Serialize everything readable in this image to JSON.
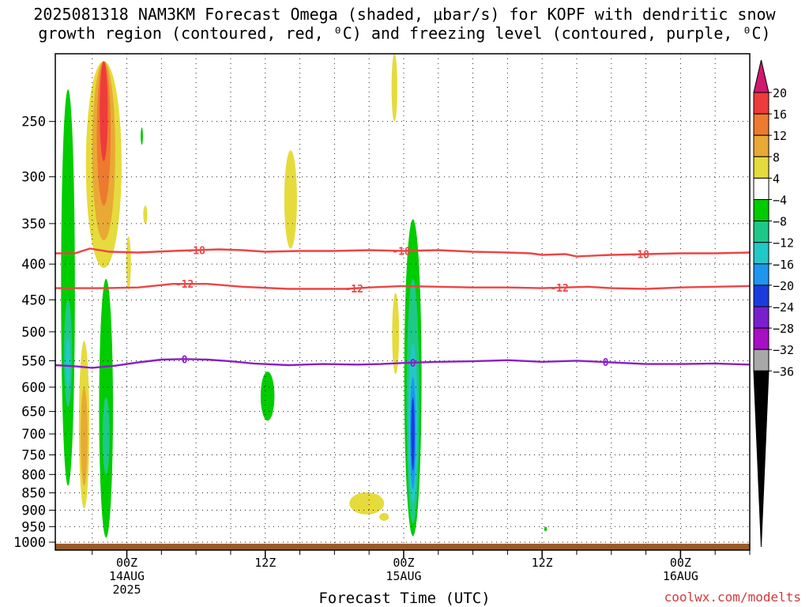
{
  "title": {
    "line1": "2025081318 NAM3KM Forecast Omega (shaded, μbar/s) for KOPF with dendritic snow",
    "line2": "growth region (contoured, red, ⁰C) and freezing level (contoured, purple, ⁰C)"
  },
  "credit": "coolwx.com/modelts",
  "chart_data": {
    "type": "heatmap",
    "xlabel": "Forecast Time (UTC)",
    "ylabel": "",
    "y_scale": "log-pressure (hPa), inverted",
    "x_range_hours": [
      -6.2,
      54.0
    ],
    "y_range_hpa": [
      200,
      1000
    ],
    "grid": "dotted",
    "x_ticks": [
      {
        "hour": 0,
        "label": "00Z",
        "sub1": "14AUG",
        "sub2": "2025"
      },
      {
        "hour": 12,
        "label": "12Z",
        "sub1": "",
        "sub2": ""
      },
      {
        "hour": 24,
        "label": "00Z",
        "sub1": "15AUG",
        "sub2": ""
      },
      {
        "hour": 36,
        "label": "12Z",
        "sub1": "",
        "sub2": ""
      },
      {
        "hour": 48,
        "label": "00Z",
        "sub1": "16AUG",
        "sub2": ""
      }
    ],
    "y_ticks": [
      250,
      300,
      350,
      400,
      450,
      500,
      550,
      600,
      650,
      700,
      750,
      800,
      850,
      900,
      950,
      1000
    ],
    "colorbar": {
      "unit": "μbar/s",
      "labels": [
        "20",
        "16",
        "12",
        "8",
        "4",
        "−4",
        "−8",
        "−12",
        "−16",
        "−20",
        "−24",
        "−28",
        "−32",
        "−36"
      ],
      "colors": {
        "top_arrow": "#d0186e",
        "16_20": "#ee3b3b",
        "12_16": "#ee7a30",
        "8_12": "#e8a935",
        "4_8": "#e6db3c",
        "-4_4": "#ffffff",
        "-8_-4": "#00cc00",
        "-12_-8": "#1fc888",
        "-16_-12": "#22c8c8",
        "-20_-16": "#1e96ef",
        "-24_-20": "#1a3cde",
        "-28_-24": "#7a1fcf",
        "-32_-28": "#a80ec4",
        "-36_-32": "#a8a8a8",
        "bottom_arrow": "#000000"
      }
    },
    "contours": [
      {
        "name": "-18",
        "color": "#ee4444",
        "points": [
          [
            -6.2,
            386
          ],
          [
            -4.5,
            386
          ],
          [
            -3.2,
            380
          ],
          [
            -1.5,
            384
          ],
          [
            1,
            385
          ],
          [
            4,
            383
          ],
          [
            6,
            382
          ],
          [
            8,
            381
          ],
          [
            10,
            382
          ],
          [
            12,
            384
          ],
          [
            15,
            383
          ],
          [
            18,
            383
          ],
          [
            21,
            382
          ],
          [
            24,
            383
          ],
          [
            27,
            382
          ],
          [
            30,
            384
          ],
          [
            33,
            385
          ],
          [
            35,
            386
          ],
          [
            36,
            388
          ],
          [
            38,
            387
          ],
          [
            39,
            390
          ],
          [
            42,
            388
          ],
          [
            45,
            387
          ],
          [
            48,
            386
          ],
          [
            51,
            386
          ],
          [
            54,
            385
          ]
        ],
        "labels": [
          {
            "hour": 6,
            "text": "-18"
          },
          [
            23.8,
            "-18"
          ],
          [
            44.5,
            "-18"
          ]
        ]
      },
      {
        "name": "-12",
        "color": "#ee4444",
        "points": [
          [
            -6.2,
            433
          ],
          [
            -2,
            433
          ],
          [
            1,
            432
          ],
          [
            4,
            427
          ],
          [
            7,
            427
          ],
          [
            10,
            431
          ],
          [
            14,
            434
          ],
          [
            17,
            434
          ],
          [
            19,
            434
          ],
          [
            21,
            432
          ],
          [
            24,
            430
          ],
          [
            27,
            431
          ],
          [
            30,
            432
          ],
          [
            33,
            432
          ],
          [
            36,
            433
          ],
          [
            38,
            432
          ],
          [
            40,
            431
          ],
          [
            42,
            433
          ],
          [
            45,
            434
          ],
          [
            48,
            432
          ],
          [
            51,
            431
          ],
          [
            54,
            430
          ]
        ],
        "labels": [
          {
            "hour": 5,
            "text": "-12"
          },
          [
            19.7,
            "-12"
          ],
          [
            37.5,
            "-12"
          ]
        ]
      },
      {
        "name": "0",
        "color": "#8a1fc8",
        "points": [
          [
            -6.2,
            558
          ],
          [
            -4.5,
            560
          ],
          [
            -3,
            563
          ],
          [
            -1,
            559
          ],
          [
            1,
            553
          ],
          [
            3,
            548
          ],
          [
            5,
            547
          ],
          [
            7,
            548
          ],
          [
            9,
            551
          ],
          [
            11,
            555
          ],
          [
            14,
            558
          ],
          [
            17,
            556
          ],
          [
            20,
            557
          ],
          [
            22,
            556
          ],
          [
            24,
            554
          ],
          [
            27,
            552
          ],
          [
            30,
            551
          ],
          [
            33,
            549
          ],
          [
            36,
            552
          ],
          [
            39,
            550
          ],
          [
            42,
            553
          ],
          [
            45,
            556
          ],
          [
            48,
            556
          ],
          [
            51,
            555
          ],
          [
            54,
            557
          ]
        ],
        "labels": [
          {
            "hour": 5,
            "text": "0"
          },
          [
            24.8,
            "0"
          ],
          [
            41.5,
            "0"
          ]
        ]
      }
    ],
    "terrain_below_hpa": 1005
  }
}
